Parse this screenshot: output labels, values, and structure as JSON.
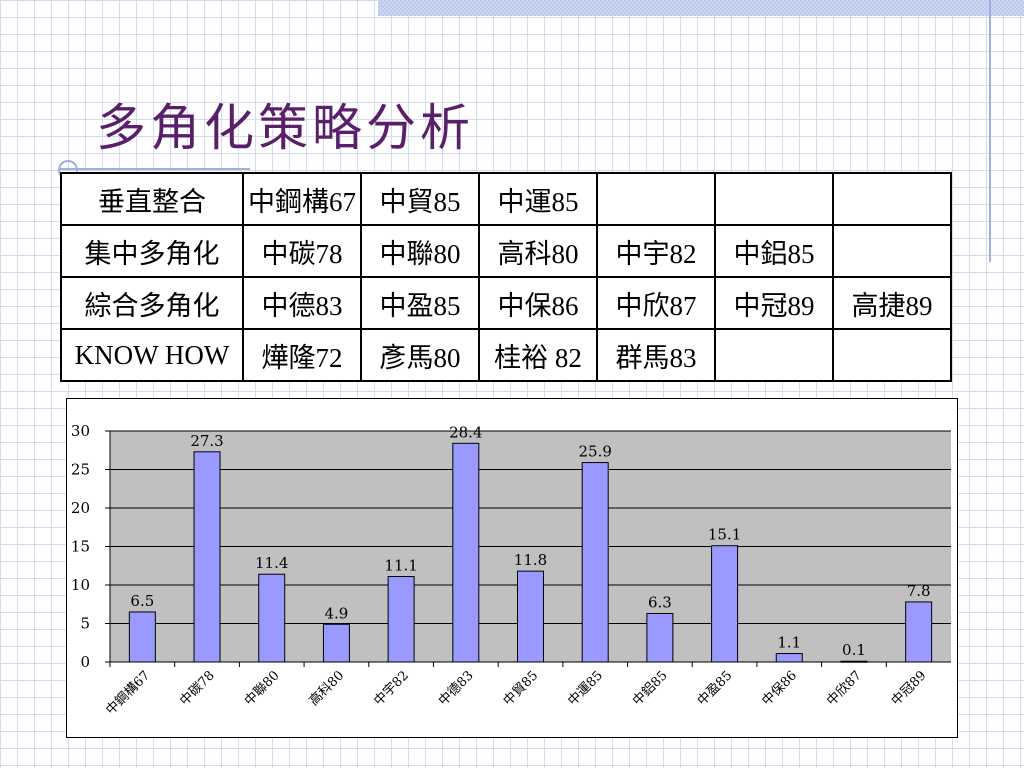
{
  "title": "多角化策略分析",
  "table": {
    "rows": [
      {
        "label": "垂直整合",
        "cells": [
          "中鋼構67",
          "中貿85",
          "中運85",
          "",
          "",
          ""
        ]
      },
      {
        "label": "集中多角化",
        "cells": [
          "中碳78",
          "中聯80",
          "高科80",
          "中宇82",
          "中鋁85",
          ""
        ]
      },
      {
        "label": "綜合多角化",
        "cells": [
          "中德83",
          "中盈85",
          "中保86",
          "中欣87",
          "中冠89",
          "高捷89"
        ]
      },
      {
        "label": "KNOW  HOW",
        "cells": [
          "燁隆72",
          "彥馬80",
          "桂裕 82",
          "群馬83",
          "",
          ""
        ]
      }
    ]
  },
  "chart_data": {
    "type": "bar",
    "categories": [
      "中鋼構67",
      "中碳78",
      "中聯80",
      "高科80",
      "中宇82",
      "中德83",
      "中貿85",
      "中運85",
      "中鋁85",
      "中盈85",
      "中保86",
      "中欣87",
      "中冠89"
    ],
    "values": [
      6.5,
      27.3,
      11.4,
      4.9,
      11.1,
      28.4,
      11.8,
      25.9,
      6.3,
      15.1,
      1.1,
      0.1,
      7.8
    ],
    "value_labels": [
      "6.5",
      "27.3",
      "11.4",
      "4.9",
      "11.1",
      "28.4",
      "11.8",
      "25.9",
      "6.3",
      "15.1",
      "1.1",
      "0.1",
      "7.8"
    ],
    "y_ticks": [
      "0",
      "5",
      "10",
      "15",
      "20",
      "25",
      "30"
    ],
    "ylim": [
      0,
      30
    ],
    "grid": true,
    "colors": {
      "bar": "#9999ff",
      "bar_stroke": "#000000",
      "plot_bg": "#c0c0c0"
    }
  }
}
